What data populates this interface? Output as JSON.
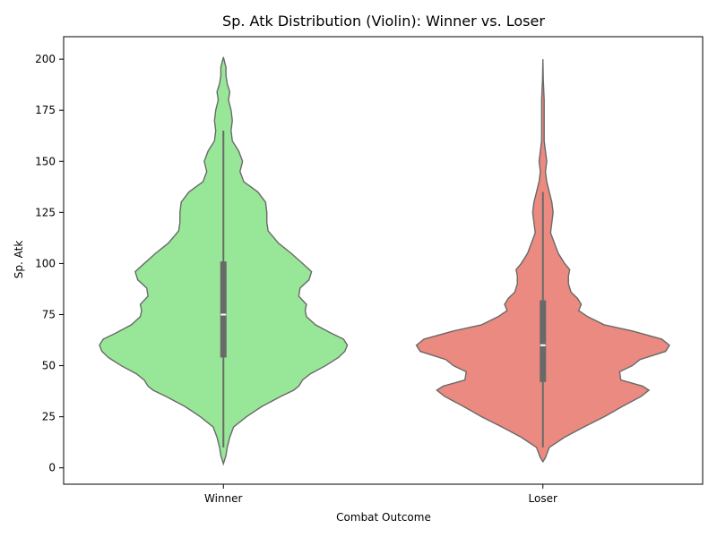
{
  "chart_data": {
    "type": "violin",
    "title": "Sp. Atk Distribution (Violin): Winner vs. Loser",
    "xlabel": "Combat Outcome",
    "ylabel": "Sp. Atk",
    "ylim": [
      -8,
      211
    ],
    "yticks": [
      0,
      25,
      50,
      75,
      100,
      125,
      150,
      175,
      200
    ],
    "categories": [
      "Winner",
      "Loser"
    ],
    "series": [
      {
        "category": "Winner",
        "color": "#98e698",
        "median": 75,
        "q1": 54,
        "q3": 101,
        "whisker_low": 10,
        "whisker_high": 165,
        "density_extent": [
          2,
          201
        ],
        "density": [
          [
            2,
            0.0
          ],
          [
            6,
            0.02
          ],
          [
            10,
            0.03
          ],
          [
            15,
            0.05
          ],
          [
            20,
            0.08
          ],
          [
            25,
            0.18
          ],
          [
            30,
            0.3
          ],
          [
            35,
            0.45
          ],
          [
            38,
            0.55
          ],
          [
            40,
            0.59
          ],
          [
            43,
            0.62
          ],
          [
            46,
            0.68
          ],
          [
            50,
            0.8
          ],
          [
            54,
            0.9
          ],
          [
            57,
            0.95
          ],
          [
            60,
            0.97
          ],
          [
            63,
            0.94
          ],
          [
            66,
            0.84
          ],
          [
            70,
            0.72
          ],
          [
            74,
            0.65
          ],
          [
            77,
            0.64
          ],
          [
            80,
            0.65
          ],
          [
            84,
            0.59
          ],
          [
            88,
            0.6
          ],
          [
            92,
            0.67
          ],
          [
            96,
            0.69
          ],
          [
            100,
            0.62
          ],
          [
            105,
            0.53
          ],
          [
            110,
            0.43
          ],
          [
            116,
            0.35
          ],
          [
            120,
            0.34
          ],
          [
            125,
            0.34
          ],
          [
            130,
            0.33
          ],
          [
            135,
            0.27
          ],
          [
            140,
            0.16
          ],
          [
            145,
            0.13
          ],
          [
            150,
            0.15
          ],
          [
            155,
            0.12
          ],
          [
            160,
            0.07
          ],
          [
            165,
            0.06
          ],
          [
            170,
            0.07
          ],
          [
            175,
            0.06
          ],
          [
            180,
            0.04
          ],
          [
            184,
            0.05
          ],
          [
            188,
            0.03
          ],
          [
            192,
            0.02
          ],
          [
            196,
            0.02
          ],
          [
            201,
            0.0
          ]
        ]
      },
      {
        "category": "Loser",
        "color": "#ea8a80",
        "median": 60,
        "q1": 42,
        "q3": 82,
        "whisker_low": 10,
        "whisker_high": 135,
        "density_extent": [
          3,
          200
        ],
        "density": [
          [
            3,
            0.0
          ],
          [
            5,
            0.02
          ],
          [
            10,
            0.05
          ],
          [
            15,
            0.17
          ],
          [
            20,
            0.32
          ],
          [
            25,
            0.48
          ],
          [
            30,
            0.62
          ],
          [
            35,
            0.77
          ],
          [
            38,
            0.83
          ],
          [
            40,
            0.78
          ],
          [
            43,
            0.61
          ],
          [
            47,
            0.6
          ],
          [
            50,
            0.7
          ],
          [
            53,
            0.76
          ],
          [
            57,
            0.96
          ],
          [
            60,
            0.99
          ],
          [
            63,
            0.93
          ],
          [
            67,
            0.7
          ],
          [
            70,
            0.48
          ],
          [
            74,
            0.35
          ],
          [
            77,
            0.28
          ],
          [
            80,
            0.3
          ],
          [
            83,
            0.27
          ],
          [
            86,
            0.22
          ],
          [
            90,
            0.2
          ],
          [
            94,
            0.2
          ],
          [
            97,
            0.21
          ],
          [
            100,
            0.17
          ],
          [
            105,
            0.12
          ],
          [
            110,
            0.09
          ],
          [
            115,
            0.06
          ],
          [
            120,
            0.07
          ],
          [
            125,
            0.08
          ],
          [
            130,
            0.07
          ],
          [
            135,
            0.05
          ],
          [
            140,
            0.03
          ],
          [
            145,
            0.02
          ],
          [
            150,
            0.03
          ],
          [
            155,
            0.02
          ],
          [
            160,
            0.01
          ],
          [
            165,
            0.01
          ],
          [
            170,
            0.01
          ],
          [
            180,
            0.01
          ],
          [
            190,
            0.003
          ],
          [
            200,
            0.0
          ]
        ]
      }
    ],
    "grid": false,
    "legend": "none"
  }
}
